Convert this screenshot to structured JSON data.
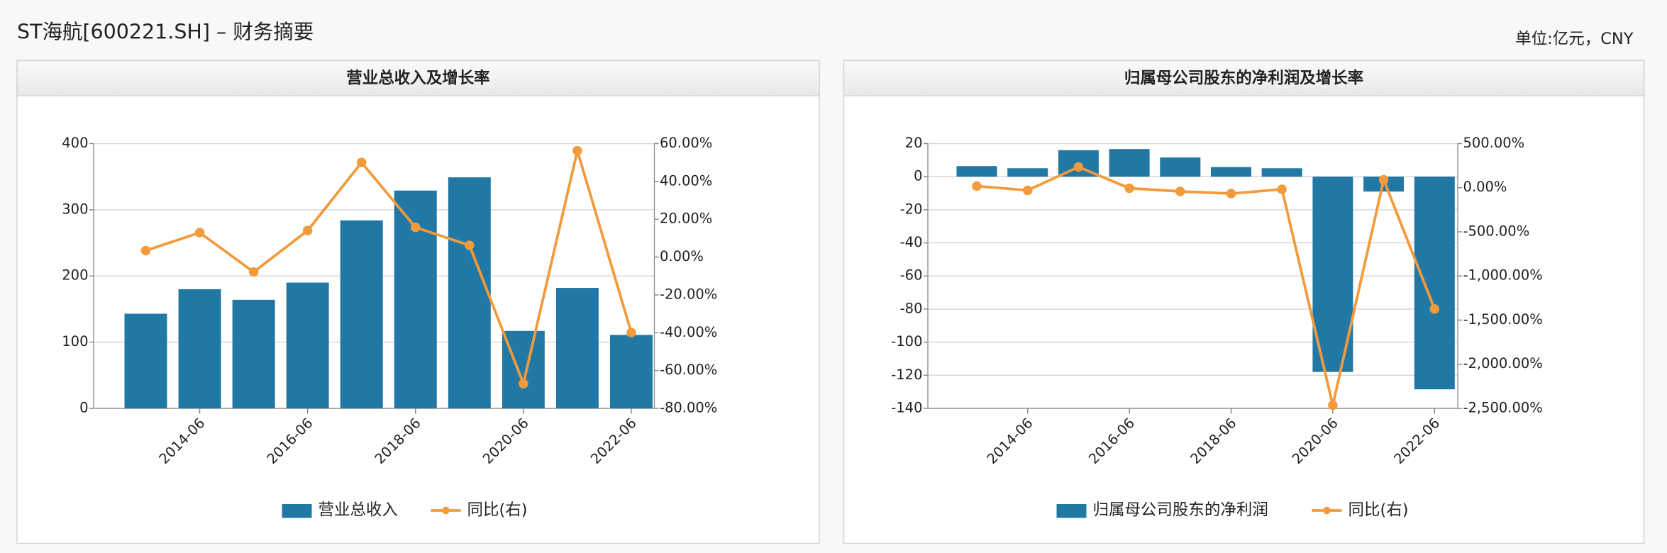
{
  "header": {
    "title": "ST海航[600221.SH] – 财务摘要",
    "unit": "单位:亿元，CNY"
  },
  "chart_data": [
    {
      "type": "bar",
      "title": "营业总收入及增长率",
      "categories": [
        null,
        "2014-06",
        null,
        "2016-06",
        null,
        "2018-06",
        null,
        "2020-06",
        null,
        "2022-06"
      ],
      "series": [
        {
          "name": "营业总收入",
          "type": "bar",
          "color": "#2278a5",
          "values": [
            143,
            180,
            164,
            190,
            284,
            329,
            349,
            117,
            182,
            111
          ]
        },
        {
          "name": "同比(右)",
          "type": "line",
          "axis": "y2",
          "color": "#f39a3b",
          "values": [
            3.4,
            12.9,
            -7.9,
            14,
            50,
            15.7,
            6.2,
            -66.9,
            56.2,
            -39.9
          ]
        }
      ],
      "ylim": [
        0,
        400
      ],
      "yticks": [
        0,
        100,
        200,
        300,
        400
      ],
      "y2lim": [
        -80,
        60
      ],
      "y2ticks": [
        {
          "value": -80,
          "label": "-80.00%"
        },
        {
          "value": -60,
          "label": "-60.00%"
        },
        {
          "value": -40,
          "label": "-40.00%"
        },
        {
          "value": -20,
          "label": "-20.00%"
        },
        {
          "value": 0,
          "label": "0.00%"
        },
        {
          "value": 20,
          "label": "20.00%"
        },
        {
          "value": 40,
          "label": "40.00%"
        },
        {
          "value": 60,
          "label": "60.00%"
        }
      ],
      "grid": true
    },
    {
      "type": "bar",
      "title": "归属母公司股东的净利润及增长率",
      "categories": [
        null,
        "2014-06",
        null,
        "2016-06",
        null,
        "2018-06",
        null,
        "2020-06",
        null,
        "2022-06"
      ],
      "series": [
        {
          "name": "归属母公司股东的净利润",
          "type": "bar",
          "color": "#2278a5",
          "values": [
            6.4,
            5.1,
            16,
            16.7,
            11.6,
            5.8,
            5.1,
            -118,
            -9,
            -128.5
          ]
        },
        {
          "name": "同比(右)",
          "type": "line",
          "axis": "y2",
          "color": "#f39a3b",
          "values": [
            18,
            -30,
            235,
            -6,
            -42,
            -66,
            -18,
            -2464,
            90,
            -1374
          ]
        }
      ],
      "ylim": [
        -140,
        20
      ],
      "yticks": [
        -140,
        -120,
        -100,
        -80,
        -60,
        -40,
        -20,
        0,
        20
      ],
      "y2lim": [
        -2500,
        500
      ],
      "y2ticks": [
        {
          "value": -2500,
          "label": "-2,500.00%"
        },
        {
          "value": -2000,
          "label": "-2,000.00%"
        },
        {
          "value": -1500,
          "label": "-1,500.00%"
        },
        {
          "value": -1000,
          "label": "-1,000.00%"
        },
        {
          "value": -500,
          "label": "-500.00%"
        },
        {
          "value": 0,
          "label": "0.00%"
        },
        {
          "value": 500,
          "label": "500.00%"
        }
      ],
      "grid": true
    }
  ]
}
